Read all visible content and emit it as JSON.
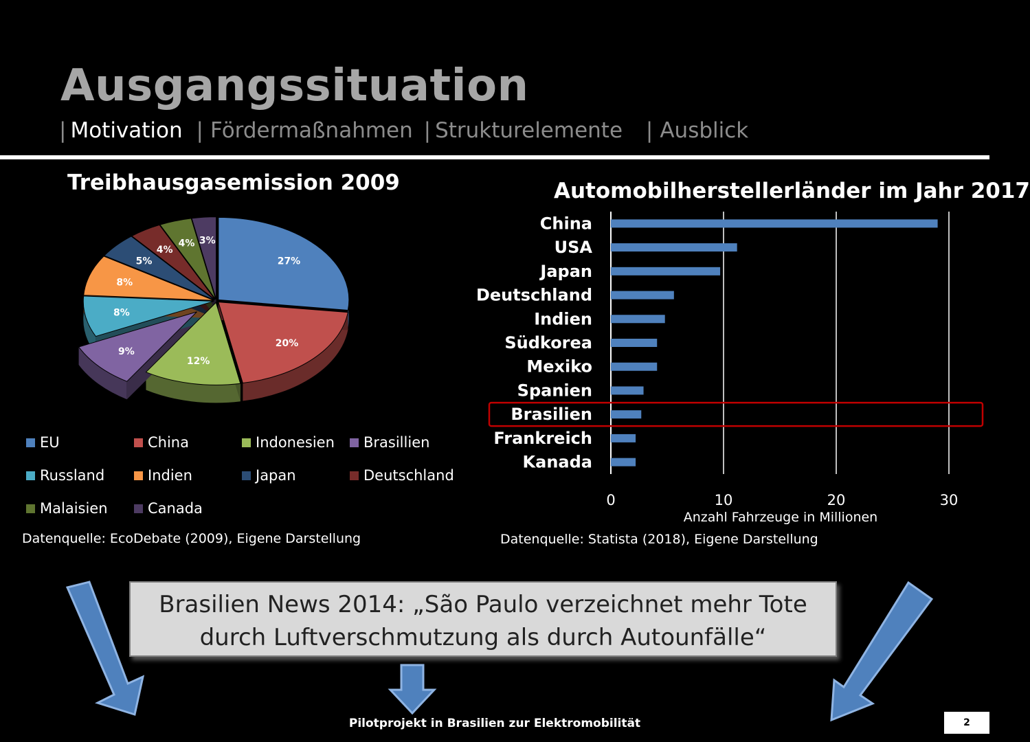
{
  "slide": {
    "title": "Ausgangssituation",
    "nav": [
      {
        "label": "Motivation",
        "active": true
      },
      {
        "label": "Fördermaßnahmen",
        "active": false
      },
      {
        "label": "Strukturelemente",
        "active": false
      },
      {
        "label": "Ausblick",
        "active": false
      }
    ],
    "nav_separator": "|",
    "pie_source": "Datenquelle: EcoDebate (2009), Eigene Darstellung",
    "bar_source": "Datenquelle: Statista (2018), Eigene Darstellung",
    "quote_line1": "Brasilien News 2014: „São Paulo verzeichnet mehr Tote",
    "quote_line2": "durch Luftverschmutzung als durch Autounfälle“",
    "footer": "Pilotprojekt in Brasilien zur Elektromobilität",
    "page_number": "2"
  },
  "chart_data": [
    {
      "type": "pie",
      "title": "Treibhausgasemission 2009",
      "labels": [
        "EU",
        "China",
        "Indonesien",
        "Brasillien",
        "Russland",
        "Indien",
        "Japan",
        "Deutschland",
        "Malaisien",
        "Canada"
      ],
      "values": [
        27,
        20,
        12,
        9,
        8,
        8,
        5,
        4,
        4,
        3
      ],
      "value_labels": [
        "27%",
        "20%",
        "12%",
        "9%",
        "8%",
        "8%",
        "5%",
        "4%",
        "4%",
        "3%"
      ],
      "colors": [
        "#4f81bd",
        "#c0504d",
        "#9bbb59",
        "#8064a2",
        "#4bacc6",
        "#f79646",
        "#2c4d75",
        "#772c2a",
        "#5f7530",
        "#4d3b62"
      ],
      "exploded": "Brasillien",
      "legend_position": "bottom"
    },
    {
      "type": "bar",
      "orientation": "horizontal",
      "title": "Automobilherstellerländer im Jahr 2017",
      "categories": [
        "China",
        "USA",
        "Japan",
        "Deutschland",
        "Indien",
        "Südkorea",
        "Mexiko",
        "Spanien",
        "Brasilien",
        "Frankreich",
        "Kanada"
      ],
      "values": [
        29.0,
        11.2,
        9.7,
        5.6,
        4.8,
        4.1,
        4.1,
        2.9,
        2.7,
        2.2,
        2.2
      ],
      "xlabel": "Anzahl Fahrzeuge in Millionen",
      "xlim": [
        0,
        30
      ],
      "xticks": [
        "0",
        "10",
        "20",
        "30"
      ],
      "grid": true,
      "bar_color": "#4f81bd",
      "highlight": "Brasilien",
      "highlight_color": "#c00000"
    }
  ]
}
